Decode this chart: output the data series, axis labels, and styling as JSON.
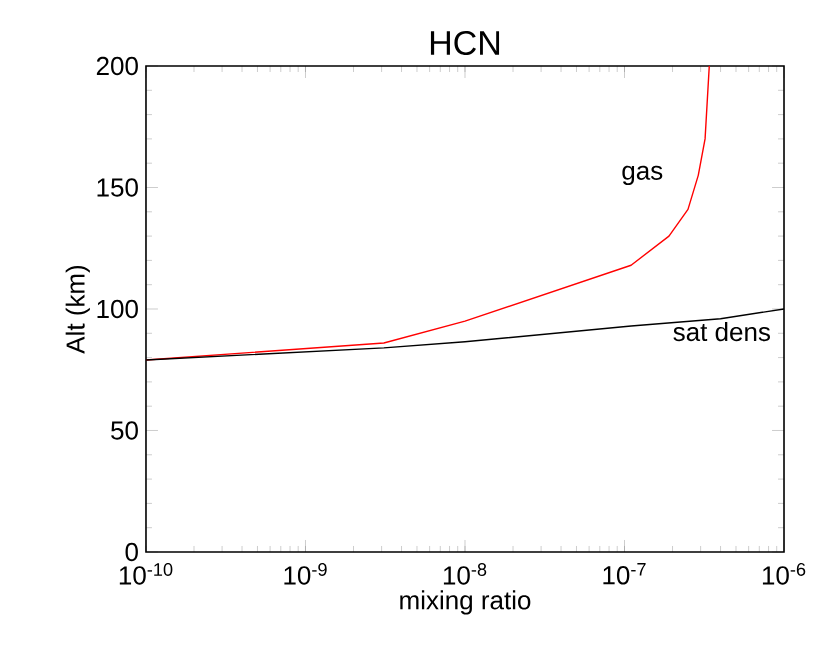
{
  "chart_data": {
    "type": "line",
    "title": "HCN",
    "xlabel": "mixing ratio",
    "ylabel": "Alt (km)",
    "log": "x",
    "legend": false,
    "grid": false,
    "marker": "none",
    "line_style": "solid",
    "xlim": [
      1e-10,
      1e-06
    ],
    "ylim": [
      0,
      200
    ],
    "xticks": [
      {
        "value": 1e-10,
        "label": "10$^{-10}$"
      },
      {
        "value": 1e-09,
        "label": "10$^{-9}$"
      },
      {
        "value": 1e-08,
        "label": "10$^{-8}$"
      },
      {
        "value": 1e-07,
        "label": "10$^{-7}$"
      },
      {
        "value": 1e-06,
        "label": "10$^{-6}$"
      }
    ],
    "yticks": [
      0,
      50,
      100,
      150,
      200
    ],
    "series": [
      {
        "name": "gas",
        "color": "#ff0000",
        "x": [
          1e-10,
          3.1e-09,
          1e-08,
          1.1e-07,
          1.9e-07,
          2.5e-07,
          2.9e-07,
          3.2e-07,
          3.4e-07
        ],
        "values": [
          79,
          86,
          95,
          118,
          130,
          141,
          155,
          170,
          200
        ]
      },
      {
        "name": "sat dens",
        "color": "#000000",
        "x": [
          1e-10,
          3.1e-09,
          1e-08,
          1.1e-07,
          4e-07,
          1e-06
        ],
        "values": [
          79,
          84,
          86.5,
          93,
          96,
          100
        ]
      }
    ]
  }
}
